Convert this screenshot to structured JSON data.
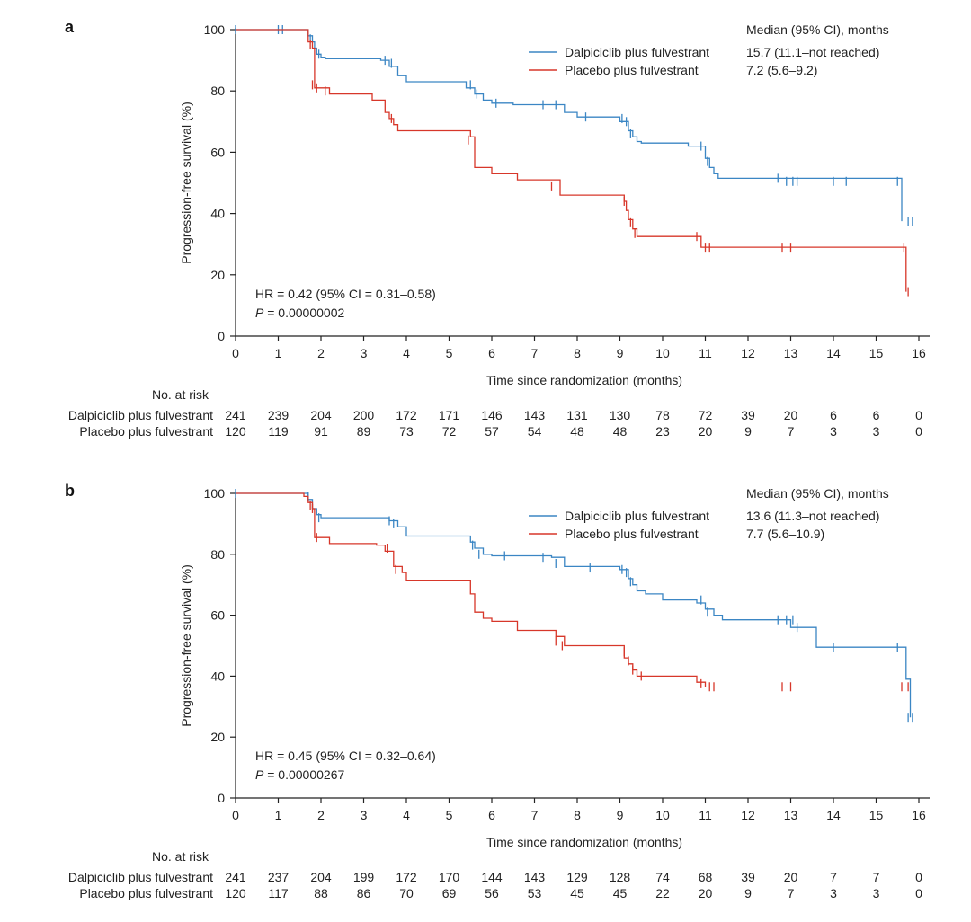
{
  "colors": {
    "dalpiciclib": "#3b86c4",
    "placebo": "#d7372a",
    "axis": "#222222"
  },
  "risk_header": "No. at risk",
  "chart_data": [
    {
      "panel": "a",
      "type": "line",
      "step": true,
      "xlabel": "Time since randomization (months)",
      "ylabel": "Progression-free survival (%)",
      "xlim": [
        0,
        16
      ],
      "ylim": [
        0,
        100
      ],
      "xticks": [
        0,
        1,
        2,
        3,
        4,
        5,
        6,
        7,
        8,
        9,
        10,
        11,
        12,
        13,
        14,
        15,
        16
      ],
      "yticks": [
        0,
        20,
        40,
        60,
        80,
        100
      ],
      "legend_title": "Median (95% CI), months",
      "legend_position": "top-right",
      "annotation_hr": "HR = 0.42 (95% CI = 0.31–0.58)",
      "annotation_p_label": "P",
      "annotation_p_value": "= 0.00000002",
      "series": [
        {
          "name": "Dalpiciclib plus fulvestrant",
          "color": "#3b86c4",
          "median": "15.7 (11.1–not reached)",
          "x": [
            0,
            1.7,
            1.8,
            1.85,
            1.9,
            2.0,
            2.1,
            3.4,
            3.6,
            3.8,
            4.0,
            5.4,
            5.6,
            5.8,
            6.0,
            6.5,
            7.7,
            8.0,
            9.0,
            9.2,
            9.3,
            9.4,
            9.5,
            10.6,
            11.0,
            11.1,
            11.2,
            11.3,
            15.6
          ],
          "y": [
            100,
            98,
            96,
            94,
            92,
            91,
            90.5,
            90,
            88,
            85,
            83,
            81,
            79,
            77,
            76,
            75.5,
            73,
            71.5,
            70,
            67,
            65,
            63.5,
            63,
            62,
            58,
            55,
            53,
            51.5,
            37.5
          ],
          "censor_x": [
            0,
            1,
            1.1,
            1.75,
            1.95,
            3.5,
            3.65,
            5.5,
            5.65,
            6.1,
            7.2,
            7.5,
            8.2,
            9.05,
            9.15,
            9.25,
            10.9,
            11.05,
            12.7,
            12.9,
            13.05,
            13.15,
            14.0,
            14.3,
            15.5,
            15.75,
            15.85
          ],
          "censor_y": [
            100,
            100,
            100,
            97,
            92,
            90,
            89,
            82,
            79,
            76,
            75.5,
            75.5,
            71.5,
            71,
            70,
            66,
            62,
            57,
            51.5,
            50.5,
            50.5,
            50.5,
            50.5,
            50.5,
            50.5,
            37.5,
            37.5
          ]
        },
        {
          "name": "Placebo plus fulvestrant",
          "color": "#d7372a",
          "median": "7.2 (5.6–9.2)",
          "x": [
            0,
            1.7,
            1.8,
            1.85,
            2.2,
            3.2,
            3.5,
            3.6,
            3.7,
            3.8,
            5.5,
            5.6,
            6.0,
            6.6,
            7.6,
            9.1,
            9.15,
            9.2,
            9.3,
            9.4,
            10.9,
            15.7
          ],
          "y": [
            100,
            96,
            94,
            81,
            79,
            77,
            73,
            71,
            69,
            67,
            65,
            55,
            53,
            51,
            46,
            44,
            41,
            38,
            35,
            32.5,
            29,
            14.5
          ],
          "censor_x": [
            1.75,
            1.8,
            1.9,
            2.1,
            3.65,
            5.45,
            7.4,
            9.1,
            9.25,
            9.35,
            10.8,
            11.0,
            11.1,
            12.8,
            13.0,
            15.65,
            15.75
          ],
          "censor_y": [
            95,
            82,
            81,
            80,
            71,
            64,
            49,
            44,
            37,
            33.5,
            32.5,
            29,
            29,
            29,
            29,
            29,
            14.5
          ]
        }
      ],
      "at_risk": {
        "times": [
          0,
          1,
          2,
          3,
          4,
          5,
          6,
          7,
          8,
          9,
          10,
          11,
          12,
          13,
          14,
          15,
          16
        ],
        "rows": [
          {
            "label": "Dalpiciclib plus fulvestrant",
            "values": [
              241,
              239,
              204,
              200,
              172,
              171,
              146,
              143,
              131,
              130,
              78,
              72,
              39,
              20,
              6,
              6,
              0
            ]
          },
          {
            "label": "Placebo plus fulvestrant",
            "values": [
              120,
              119,
              91,
              89,
              73,
              72,
              57,
              54,
              48,
              48,
              23,
              20,
              9,
              7,
              3,
              3,
              0
            ]
          }
        ]
      }
    },
    {
      "panel": "b",
      "type": "line",
      "step": true,
      "xlabel": "Time since randomization (months)",
      "ylabel": "Progression-free survival (%)",
      "xlim": [
        0,
        16
      ],
      "ylim": [
        0,
        100
      ],
      "xticks": [
        0,
        1,
        2,
        3,
        4,
        5,
        6,
        7,
        8,
        9,
        10,
        11,
        12,
        13,
        14,
        15,
        16
      ],
      "yticks": [
        0,
        20,
        40,
        60,
        80,
        100
      ],
      "legend_title": "Median (95% CI), months",
      "legend_position": "top-right",
      "annotation_hr": "HR = 0.45 (95% CI = 0.32–0.64)",
      "annotation_p_label": "P",
      "annotation_p_value": "= 0.00000267",
      "series": [
        {
          "name": "Dalpiciclib plus fulvestrant",
          "color": "#3b86c4",
          "median": "13.6 (11.3–not reached)",
          "x": [
            0,
            1.7,
            1.8,
            1.9,
            2.0,
            3.6,
            3.8,
            4.0,
            5.5,
            5.6,
            5.8,
            6.0,
            7.4,
            7.7,
            9.0,
            9.2,
            9.3,
            9.4,
            9.6,
            10.0,
            10.8,
            11.0,
            11.2,
            11.4,
            13.0,
            13.6,
            15.7,
            15.8
          ],
          "y": [
            100,
            98,
            95,
            93,
            92,
            91,
            89,
            86,
            84,
            82,
            80,
            79.5,
            79,
            76,
            75,
            72,
            70,
            68,
            67,
            65,
            64,
            62,
            60,
            58.5,
            56,
            49.5,
            39,
            26.5
          ],
          "censor_x": [
            0,
            1.7,
            1.95,
            3.6,
            3.7,
            5.55,
            5.7,
            6.3,
            7.2,
            7.5,
            8.3,
            9.05,
            9.15,
            9.25,
            10.9,
            11.05,
            12.7,
            12.9,
            13.05,
            13.15,
            14.0,
            15.5,
            15.75,
            15.85
          ],
          "censor_y": [
            100,
            99,
            92,
            91,
            90,
            83,
            80,
            79.5,
            79,
            77,
            75.5,
            75,
            74,
            71,
            65,
            61,
            58.5,
            58.5,
            58.5,
            56,
            49.5,
            49.5,
            26.5,
            26.5
          ]
        },
        {
          "name": "Placebo plus fulvestrant",
          "color": "#d7372a",
          "median": "7.7 (5.6–10.9)",
          "x": [
            0,
            1.6,
            1.7,
            1.8,
            1.85,
            2.2,
            3.3,
            3.5,
            3.7,
            3.9,
            4.0,
            5.5,
            5.6,
            5.8,
            6.0,
            6.6,
            7.5,
            7.7,
            9.1,
            9.2,
            9.3,
            9.4,
            10.8,
            11.0
          ],
          "y": [
            100,
            99,
            97,
            95,
            85.5,
            83.5,
            83,
            81,
            76,
            74,
            71.5,
            67,
            61,
            59,
            58,
            55,
            53,
            50,
            46,
            44,
            42,
            40,
            38,
            36.5
          ],
          "censor_x": [
            1.75,
            1.8,
            1.9,
            3.55,
            3.75,
            7.5,
            7.65,
            9.1,
            9.2,
            9.3,
            9.5,
            10.9,
            11.1,
            11.2,
            12.8,
            13.0,
            15.6,
            15.75
          ],
          "censor_y": [
            96,
            95,
            85.5,
            82,
            75,
            51.5,
            50,
            48,
            45,
            42,
            40,
            37.5,
            36.5,
            36.5,
            36.5,
            36.5,
            36.5,
            36.5
          ]
        }
      ],
      "at_risk": {
        "times": [
          0,
          1,
          2,
          3,
          4,
          5,
          6,
          7,
          8,
          9,
          10,
          11,
          12,
          13,
          14,
          15,
          16
        ],
        "rows": [
          {
            "label": "Dalpiciclib plus fulvestrant",
            "values": [
              241,
              237,
              204,
              199,
              172,
              170,
              144,
              143,
              129,
              128,
              74,
              68,
              39,
              20,
              7,
              7,
              0
            ]
          },
          {
            "label": "Placebo plus fulvestrant",
            "values": [
              120,
              117,
              88,
              86,
              70,
              69,
              56,
              53,
              45,
              45,
              22,
              20,
              9,
              7,
              3,
              3,
              0
            ]
          }
        ]
      }
    }
  ]
}
